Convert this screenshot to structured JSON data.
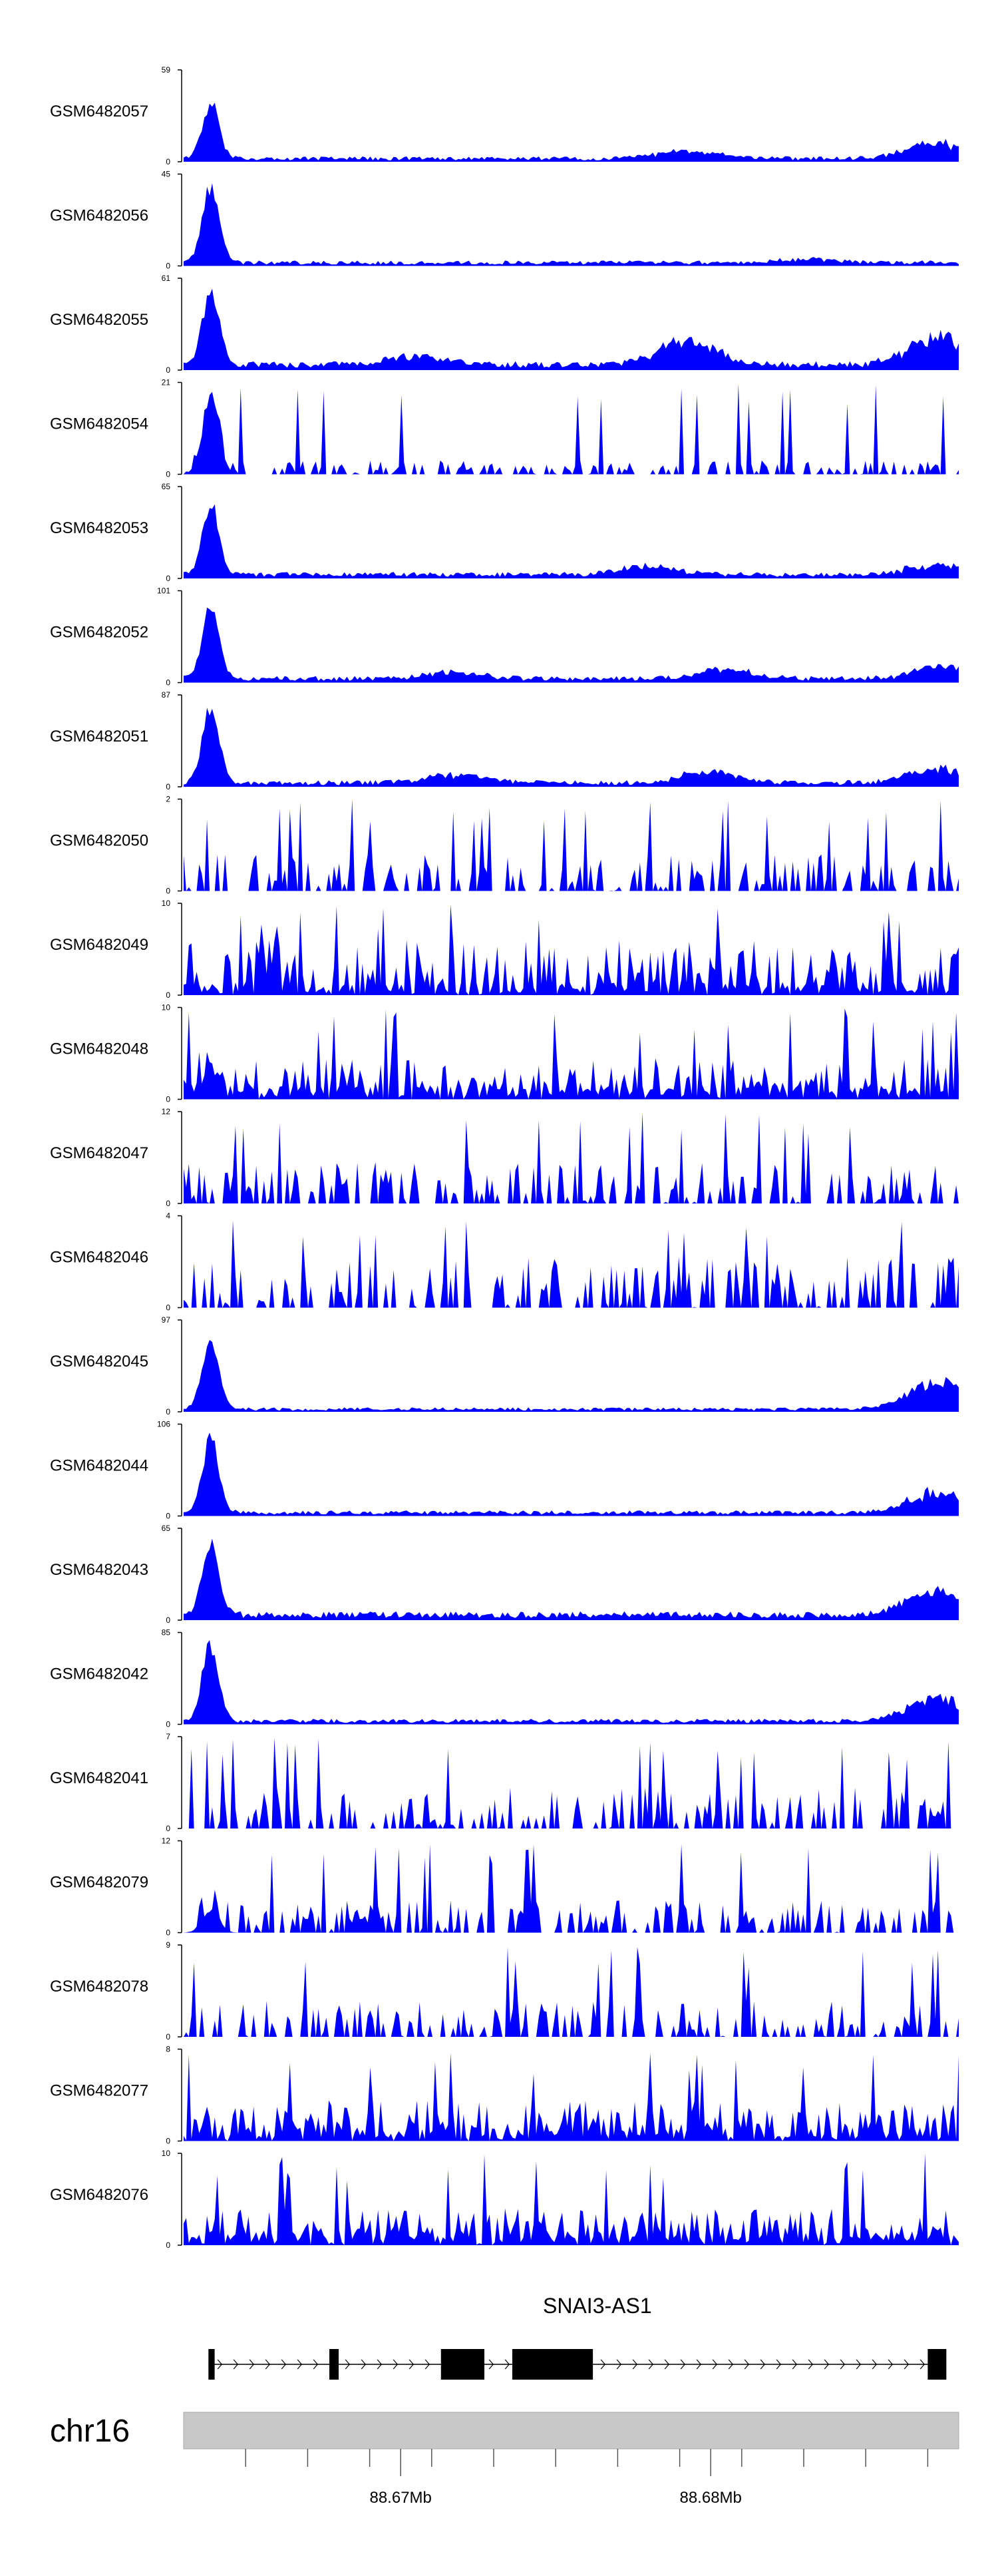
{
  "colors": {
    "signal": "#0000ff",
    "axis": "#000000",
    "ideogram": "#c8c8c8"
  },
  "chart_data": {
    "type": "area",
    "x_range_mb": [
      88.663,
      88.688
    ],
    "tracks": [
      {
        "name": "GSM6482057",
        "ymax": 59,
        "ymin": 0,
        "peak": 0.7,
        "bg": 0.05,
        "noise": "smooth",
        "late": [
          [
            0.65,
            0.1
          ],
          [
            0.97,
            0.2
          ]
        ]
      },
      {
        "name": "GSM6482056",
        "ymax": 45,
        "ymin": 0,
        "peak": 0.95,
        "bg": 0.05,
        "noise": "smooth",
        "late": [
          [
            0.8,
            0.05
          ]
        ]
      },
      {
        "name": "GSM6482055",
        "ymax": 61,
        "ymin": 0,
        "peak": 0.95,
        "bg": 0.08,
        "noise": "smooth",
        "late": [
          [
            0.3,
            0.12
          ],
          [
            0.65,
            0.3
          ],
          [
            0.97,
            0.35
          ]
        ]
      },
      {
        "name": "GSM6482054",
        "ymax": 21,
        "ymin": 0,
        "peak": 0.95,
        "bg": 0.15,
        "noise": "spiky",
        "late": []
      },
      {
        "name": "GSM6482053",
        "ymax": 65,
        "ymin": 0,
        "peak": 0.9,
        "bg": 0.06,
        "noise": "smooth",
        "late": [
          [
            0.6,
            0.1
          ],
          [
            0.97,
            0.12
          ]
        ]
      },
      {
        "name": "GSM6482052",
        "ymax": 101,
        "ymin": 0,
        "peak": 0.9,
        "bg": 0.06,
        "noise": "smooth",
        "late": [
          [
            0.35,
            0.08
          ],
          [
            0.7,
            0.12
          ],
          [
            0.98,
            0.15
          ]
        ]
      },
      {
        "name": "GSM6482051",
        "ymax": 87,
        "ymin": 0,
        "peak": 0.95,
        "bg": 0.06,
        "noise": "smooth",
        "late": [
          [
            0.35,
            0.1
          ],
          [
            0.68,
            0.15
          ],
          [
            0.97,
            0.18
          ]
        ]
      },
      {
        "name": "GSM6482050",
        "ymax": 2,
        "ymin": 0,
        "peak": 0.0,
        "bg": 0.4,
        "noise": "spiky",
        "late": []
      },
      {
        "name": "GSM6482049",
        "ymax": 10,
        "ymin": 0,
        "peak": 0.0,
        "bg": 0.6,
        "noise": "dense",
        "late": []
      },
      {
        "name": "GSM6482048",
        "ymax": 10,
        "ymin": 0,
        "peak": 0.3,
        "bg": 0.45,
        "noise": "dense",
        "late": []
      },
      {
        "name": "GSM6482047",
        "ymax": 12,
        "ymin": 0,
        "peak": 0.0,
        "bg": 0.45,
        "noise": "spiky",
        "late": []
      },
      {
        "name": "GSM6482046",
        "ymax": 4,
        "ymin": 0,
        "peak": 0.0,
        "bg": 0.55,
        "noise": "spiky",
        "late": []
      },
      {
        "name": "GSM6482045",
        "ymax": 97,
        "ymin": 0,
        "peak": 0.9,
        "bg": 0.04,
        "noise": "smooth",
        "late": [
          [
            0.97,
            0.35
          ]
        ]
      },
      {
        "name": "GSM6482044",
        "ymax": 106,
        "ymin": 0,
        "peak": 0.9,
        "bg": 0.05,
        "noise": "smooth",
        "late": [
          [
            0.97,
            0.25
          ]
        ]
      },
      {
        "name": "GSM6482043",
        "ymax": 65,
        "ymin": 0,
        "peak": 0.9,
        "bg": 0.08,
        "noise": "smooth",
        "late": [
          [
            0.97,
            0.3
          ]
        ]
      },
      {
        "name": "GSM6482042",
        "ymax": 85,
        "ymin": 0,
        "peak": 0.95,
        "bg": 0.05,
        "noise": "smooth",
        "late": [
          [
            0.97,
            0.3
          ]
        ]
      },
      {
        "name": "GSM6482041",
        "ymax": 7,
        "ymin": 0,
        "peak": 0.0,
        "bg": 0.45,
        "noise": "spiky",
        "late": []
      },
      {
        "name": "GSM6482079",
        "ymax": 12,
        "ymin": 0,
        "peak": 0.3,
        "bg": 0.35,
        "noise": "spiky",
        "late": []
      },
      {
        "name": "GSM6482078",
        "ymax": 9,
        "ymin": 0,
        "peak": 0.0,
        "bg": 0.4,
        "noise": "spiky",
        "late": []
      },
      {
        "name": "GSM6482077",
        "ymax": 8,
        "ymin": 0,
        "peak": 0.0,
        "bg": 0.45,
        "noise": "dense",
        "late": []
      },
      {
        "name": "GSM6482076",
        "ymax": 10,
        "ymin": 0,
        "peak": 0.0,
        "bg": 0.4,
        "noise": "dense",
        "late": []
      }
    ],
    "gene": {
      "name": "SNAI3-AS1",
      "exons": [
        [
          88.6638,
          88.664
        ],
        [
          88.6677,
          88.668
        ],
        [
          88.6713,
          88.6727
        ],
        [
          88.6736,
          88.6762
        ],
        [
          88.687,
          88.6876
        ]
      ]
    },
    "chromosome": "chr16",
    "ticks_mb": [
      88.665,
      88.667,
      88.669,
      88.671,
      88.673,
      88.675,
      88.677,
      88.679,
      88.681,
      88.683,
      88.685,
      88.687
    ],
    "tick_labels": [
      {
        "value": 88.67,
        "label": "88.67Mb"
      },
      {
        "value": 88.68,
        "label": "88.68Mb"
      }
    ]
  }
}
